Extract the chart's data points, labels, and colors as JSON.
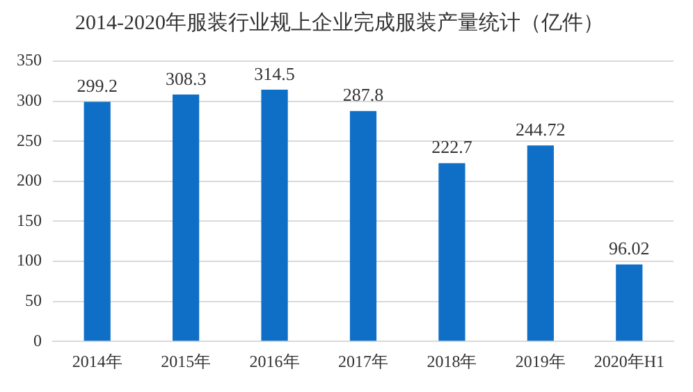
{
  "chart_data": {
    "type": "bar",
    "title": "2014-2020年服装行业规上企业完成服装产量统计（亿件）",
    "categories": [
      "2014年",
      "2015年",
      "2016年",
      "2017年",
      "2018年",
      "2019年",
      "2020年H1"
    ],
    "values": [
      299.2,
      308.3,
      314.5,
      287.8,
      222.7,
      244.72,
      96.02
    ],
    "color": "#0f6fc6",
    "ylim": [
      0,
      350
    ],
    "yticks": [
      0,
      50,
      100,
      150,
      200,
      250,
      300,
      350
    ],
    "grid": "y",
    "data_labels": true
  }
}
